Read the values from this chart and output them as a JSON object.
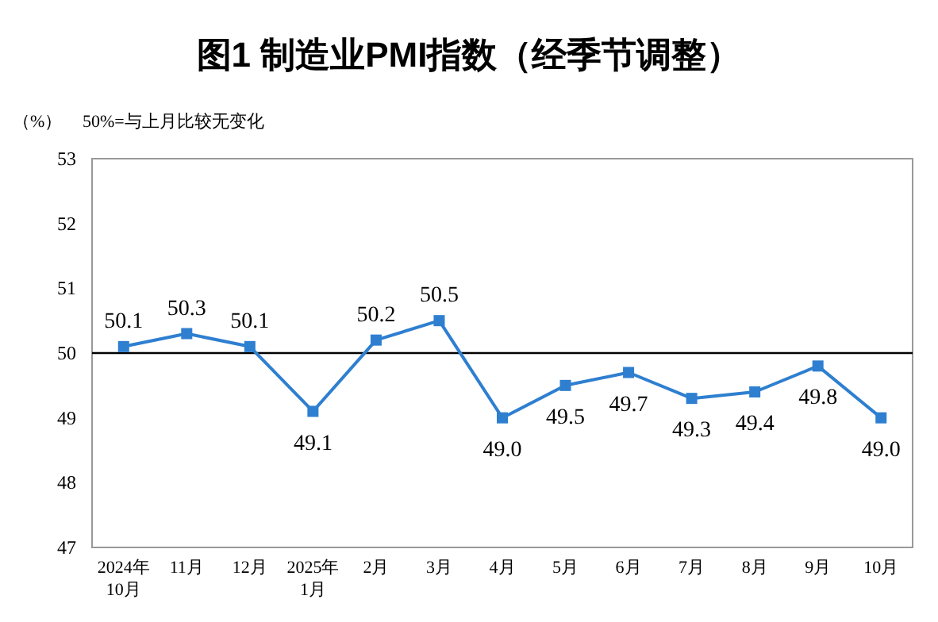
{
  "chart_data": {
    "type": "line",
    "title": "图1  制造业PMI指数（经季节调整）",
    "ylabel": "（%）",
    "annotations": [
      "50%=与上月比较无变化"
    ],
    "categories": [
      "2024年10月",
      "11月",
      "12月",
      "2025年1月",
      "2月",
      "3月",
      "4月",
      "5月",
      "6月",
      "7月",
      "8月",
      "9月",
      "10月"
    ],
    "series": [
      {
        "color": "#2e7fd0",
        "values": [
          50.1,
          50.3,
          50.1,
          49.1,
          50.2,
          50.5,
          49.0,
          49.5,
          49.7,
          49.3,
          49.4,
          49.8,
          49.0
        ],
        "value_labels": [
          "50.1",
          "50.3",
          "50.1",
          "49.1",
          "50.2",
          "50.5",
          "49.0",
          "49.5",
          "49.7",
          "49.3",
          "49.4",
          "49.8",
          "49.0"
        ]
      }
    ],
    "ylim": [
      47,
      53
    ],
    "yticks": [
      47,
      48,
      49,
      50,
      51,
      52,
      53
    ],
    "marker": "square",
    "line_style": "solid",
    "grid": false,
    "ref_lines": [
      {
        "axis": "y",
        "value": 50,
        "color": "#000000"
      }
    ]
  }
}
